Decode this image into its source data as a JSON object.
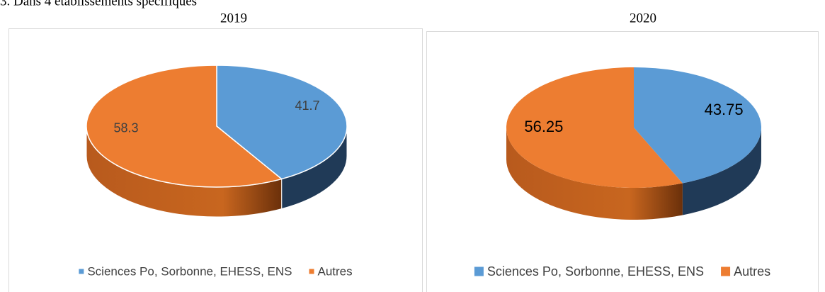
{
  "heading": "3. Dans 4 établissements spécifiques",
  "chart_data": [
    {
      "type": "pie",
      "title": "2019",
      "categories": [
        "Sciences Po, Sorbonne, EHESS, ENS",
        "Autres"
      ],
      "values": [
        41.7,
        58.3
      ],
      "colors": [
        "#5b9bd5",
        "#ed7d31"
      ],
      "legend": "bottom"
    },
    {
      "type": "pie",
      "title": "2020",
      "categories": [
        "Sciences Po, Sorbonne, EHESS, ENS",
        "Autres"
      ],
      "values": [
        43.75,
        56.25
      ],
      "colors": [
        "#5b9bd5",
        "#ed7d31"
      ],
      "legend": "bottom"
    }
  ]
}
